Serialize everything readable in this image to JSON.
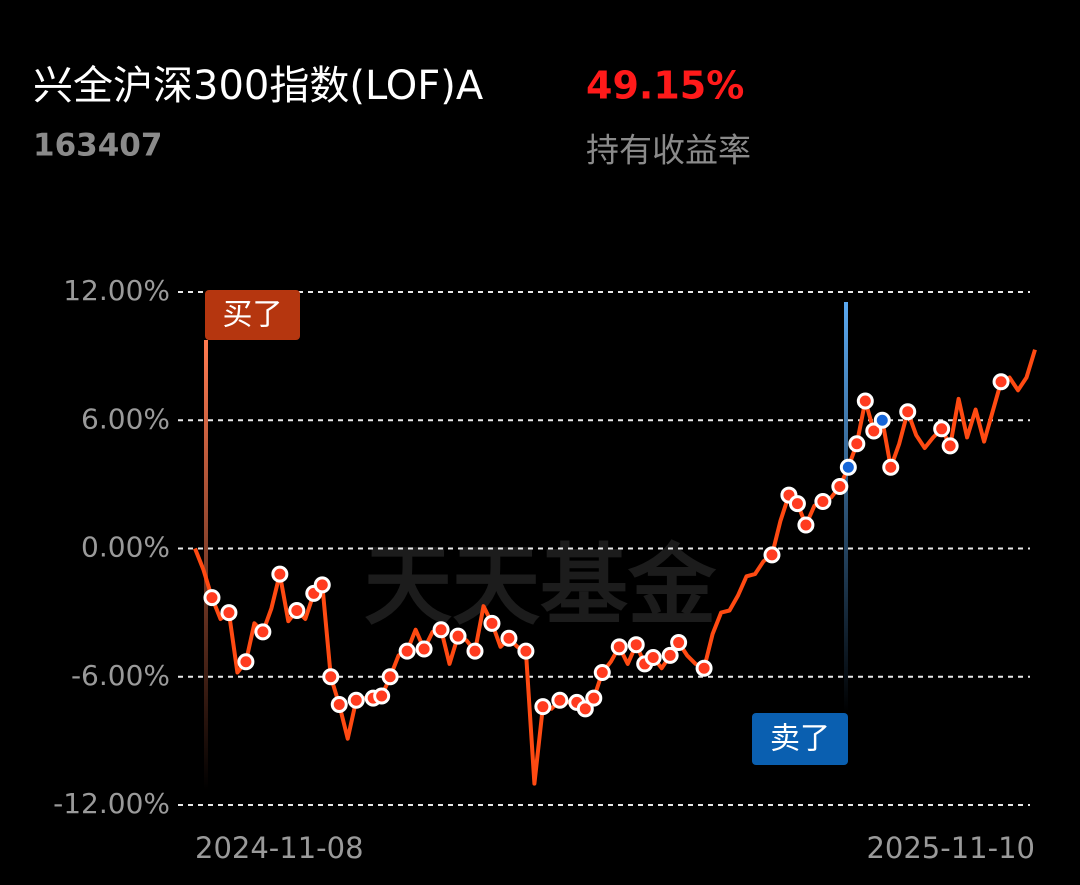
{
  "header": {
    "title": "兴全沪深300指数(LOF)A",
    "code": "163407",
    "return_value": "49.15%",
    "return_label": "持有收益率"
  },
  "chart_data": {
    "type": "line",
    "watermark": "天天基金",
    "categories": [
      "2024-11-08",
      null,
      null,
      null,
      null,
      null,
      null,
      null,
      null,
      null,
      null,
      null,
      null,
      null,
      null,
      null,
      null,
      null,
      null,
      null,
      null,
      null,
      null,
      null,
      null,
      null,
      null,
      null,
      null,
      null,
      null,
      null,
      null,
      null,
      null,
      null,
      null,
      null,
      null,
      null,
      null,
      null,
      null,
      null,
      null,
      null,
      null,
      null,
      null,
      null,
      null,
      null,
      null,
      null,
      null,
      null,
      null,
      null,
      null,
      null,
      null,
      null,
      null,
      null,
      null,
      null,
      null,
      null,
      null,
      null,
      null,
      null,
      null,
      null,
      null,
      null,
      null,
      null,
      null,
      null,
      null,
      null,
      null,
      null,
      null,
      null,
      null,
      null,
      null,
      null,
      null,
      null,
      null,
      null,
      null,
      null,
      null,
      null,
      null,
      "2025-11-10"
    ],
    "series": [
      {
        "color": "#ff4a12",
        "style": "line",
        "values": [
          0.0,
          -1.0,
          -2.3,
          -3.3,
          -3.0,
          -5.8,
          -5.3,
          -3.5,
          -3.9,
          -2.8,
          -1.2,
          -3.4,
          -2.9,
          -3.3,
          -2.1,
          -1.7,
          -6.0,
          -7.3,
          -8.9,
          -7.1,
          -7.0,
          -7.0,
          -6.9,
          -6.0,
          -5.0,
          -4.8,
          -3.8,
          -4.7,
          -3.9,
          -3.8,
          -5.4,
          -4.1,
          -4.3,
          -4.8,
          -2.7,
          -3.5,
          -4.6,
          -4.2,
          -4.6,
          -4.8,
          -11.0,
          -7.4,
          -7.5,
          -7.1,
          -7.2,
          -7.2,
          -7.5,
          -7.0,
          -5.8,
          -5.3,
          -4.6,
          -5.4,
          -4.5,
          -5.4,
          -5.1,
          -5.6,
          -5.0,
          -4.4,
          -5.0,
          -5.4,
          -5.6,
          -4.0,
          -3.0,
          -2.9,
          -2.2,
          -1.3,
          -1.2,
          -0.6,
          -0.3,
          1.3,
          2.5,
          2.1,
          1.1,
          2.0,
          2.2,
          2.4,
          2.9,
          3.8,
          4.9,
          6.9,
          5.5,
          6.0,
          3.8,
          4.9,
          6.4,
          5.3,
          4.7,
          5.2,
          5.6,
          4.8,
          7.0,
          5.2,
          6.5,
          5.0,
          6.4,
          7.8,
          8.0,
          7.4,
          8.0,
          9.3
        ]
      },
      {
        "color": "#ff3b1f",
        "style": "marker",
        "values": [
          null,
          null,
          -2.3,
          null,
          -3.0,
          null,
          -5.3,
          null,
          -3.9,
          null,
          -1.2,
          null,
          -2.9,
          null,
          -2.1,
          -1.7,
          -6.0,
          -7.3,
          null,
          -7.1,
          null,
          -7.0,
          -6.9,
          -6.0,
          null,
          -4.8,
          null,
          -4.7,
          null,
          -3.8,
          null,
          -4.1,
          null,
          -4.8,
          null,
          -3.5,
          null,
          -4.2,
          null,
          -4.8,
          null,
          -7.4,
          null,
          -7.1,
          null,
          -7.2,
          -7.5,
          -7.0,
          -5.8,
          null,
          -4.6,
          null,
          -4.5,
          -5.4,
          -5.1,
          null,
          -5.0,
          -4.4,
          null,
          null,
          -5.6,
          null,
          null,
          null,
          null,
          null,
          null,
          null,
          -0.3,
          null,
          2.5,
          2.1,
          1.1,
          null,
          2.2,
          null,
          2.9,
          null,
          4.9,
          6.9,
          5.5,
          null,
          3.8,
          null,
          6.4,
          null,
          null,
          null,
          5.6,
          4.8,
          null,
          null,
          null,
          null,
          null,
          7.8,
          null,
          null,
          null,
          null
        ]
      },
      {
        "color": "#1565d8",
        "style": "marker",
        "values": [
          null,
          null,
          null,
          null,
          null,
          null,
          null,
          null,
          null,
          null,
          null,
          null,
          null,
          null,
          null,
          null,
          null,
          null,
          null,
          null,
          null,
          null,
          null,
          null,
          null,
          null,
          null,
          null,
          null,
          null,
          null,
          null,
          null,
          null,
          null,
          null,
          null,
          null,
          null,
          null,
          null,
          null,
          null,
          null,
          null,
          null,
          null,
          null,
          null,
          null,
          null,
          null,
          null,
          null,
          null,
          null,
          null,
          null,
          null,
          null,
          null,
          null,
          null,
          null,
          null,
          null,
          null,
          null,
          null,
          null,
          null,
          null,
          null,
          null,
          null,
          null,
          null,
          3.8,
          null,
          null,
          null,
          6.0,
          null,
          null,
          null,
          null,
          null,
          null,
          null,
          null,
          null,
          null,
          null,
          null,
          null,
          null,
          null,
          null,
          null,
          null
        ]
      }
    ],
    "annotations": [
      {
        "text": "买了",
        "color": "#b5360f"
      },
      {
        "text": "卖了",
        "color": "#0a5fb0"
      }
    ],
    "ylim": [
      -12,
      12
    ],
    "yticks": [
      {
        "value": -12,
        "label": "-12.00%"
      },
      {
        "value": -6,
        "label": "-6.00%"
      },
      {
        "value": 0,
        "label": "0.00%"
      },
      {
        "value": 6,
        "label": "6.00%"
      },
      {
        "value": 12,
        "label": "12.00%"
      }
    ],
    "grid": true
  }
}
